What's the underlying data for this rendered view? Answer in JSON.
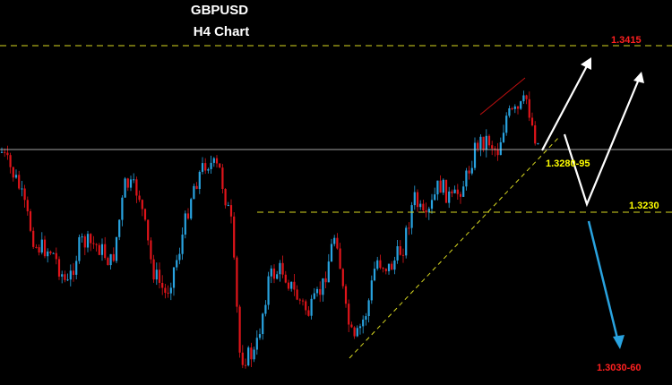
{
  "chart_data": {
    "type": "candlestick",
    "title": "GBPUSD",
    "subtitle": "H4 Chart",
    "colors": {
      "background": "#000000",
      "bull": "#29a3e0",
      "bear": "#e0141a",
      "dashed": "#d8d820",
      "label_red": "#ff2020",
      "label_yellow": "#ffff00",
      "arrow_up": "#ffffff",
      "arrow_down": "#29a3e0",
      "price_line": "#d8d8d8",
      "channel": "#c01010"
    },
    "levels": [
      {
        "label": "1.3415",
        "color": "label_red"
      },
      {
        "label": "1.3230",
        "color": "label_yellow"
      },
      {
        "label": "1.3280-95",
        "color": "label_yellow"
      },
      {
        "label": "1.3030-60",
        "color": "label_red"
      }
    ]
  }
}
